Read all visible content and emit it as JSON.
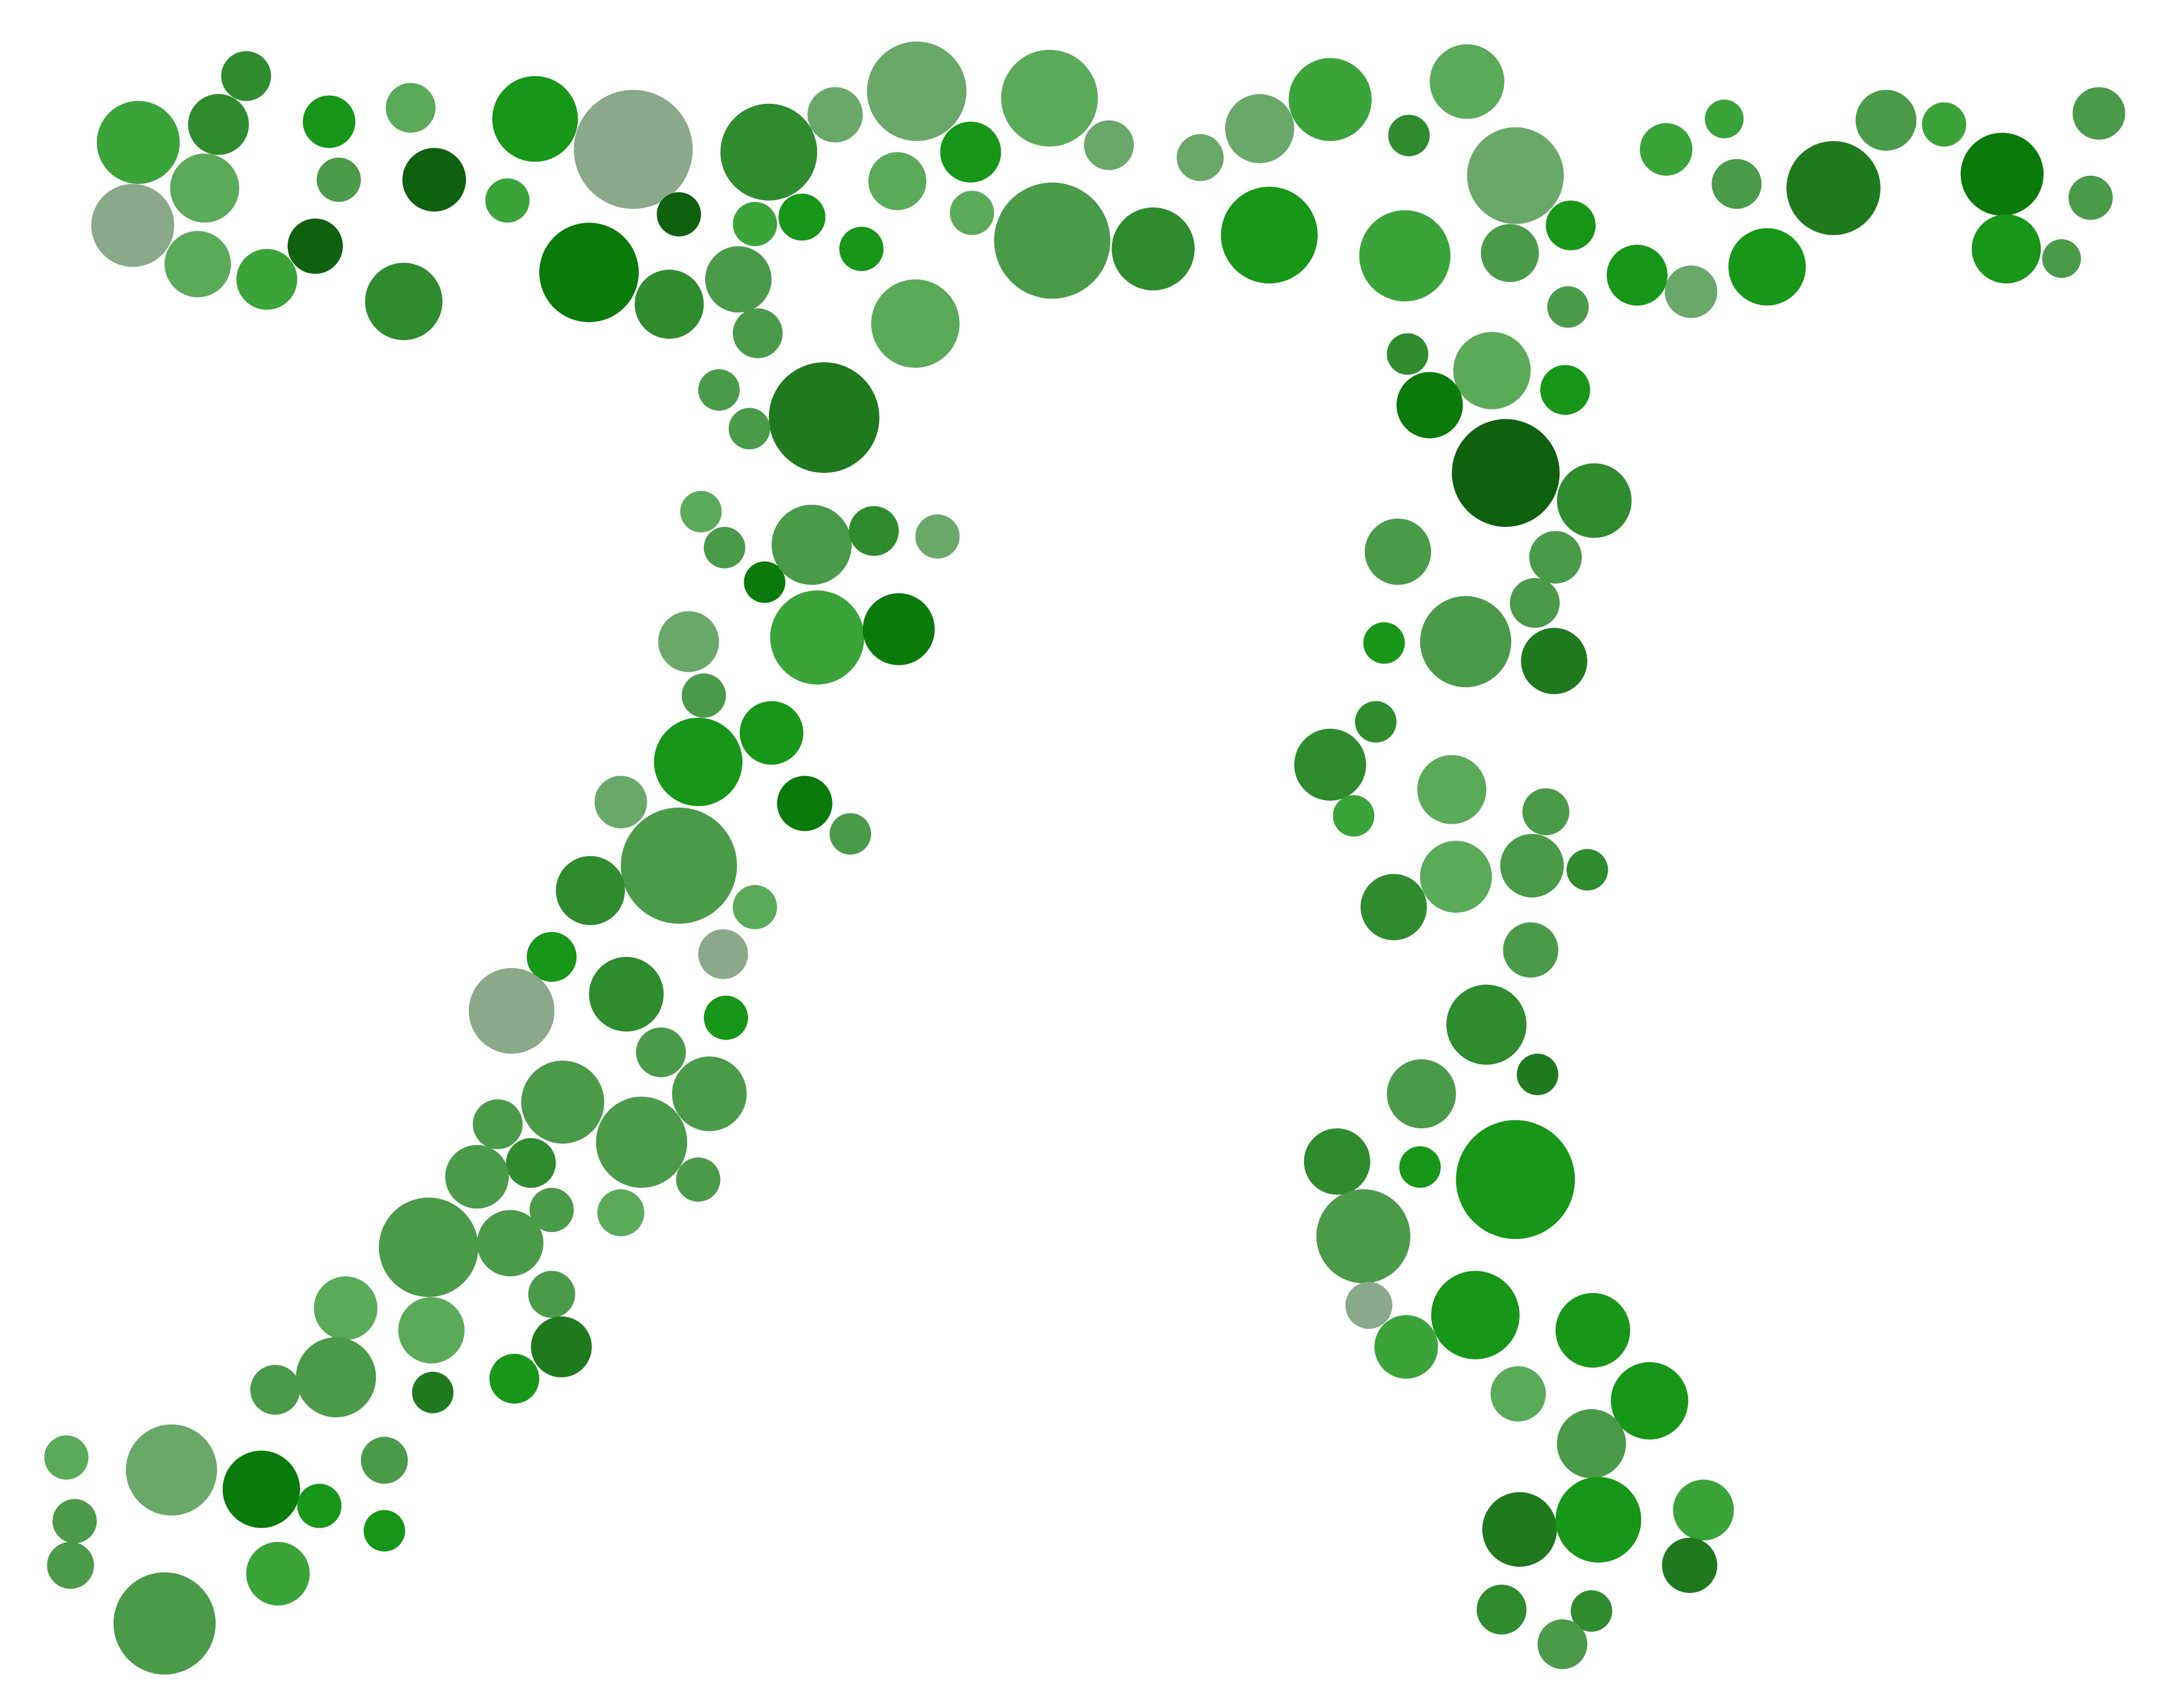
{
  "figure": {
    "description_kind": "dot-pattern",
    "background": "#ffffff",
    "palette": [
      "#3aa33a",
      "#2e8b2e",
      "#4a9a4a",
      "#1f7a1f",
      "#5aaa5a",
      "#0a7a0a",
      "#6aa86a",
      "#8aa88a",
      "#179617",
      "#0f600f"
    ]
  }
}
